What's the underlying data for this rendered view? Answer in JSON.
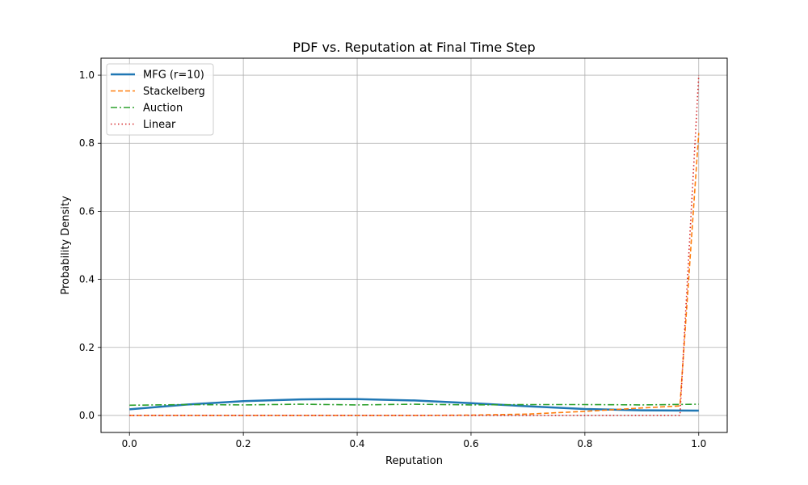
{
  "chart_data": {
    "type": "line",
    "title": "PDF vs. Reputation at Final Time Step",
    "xlabel": "Reputation",
    "ylabel": "Probability Density",
    "xlim": [
      -0.05,
      1.05
    ],
    "ylim": [
      -0.05,
      1.05
    ],
    "xticks": [
      "0.0",
      "0.2",
      "0.4",
      "0.6",
      "0.8",
      "1.0"
    ],
    "yticks": [
      "0.0",
      "0.2",
      "0.4",
      "0.6",
      "0.8",
      "1.0"
    ],
    "grid": true,
    "legend_position": "upper-left",
    "series": [
      {
        "name": "MFG (r=10)",
        "color": "#1f77b4",
        "style": "solid",
        "x": [
          0.0,
          0.1,
          0.2,
          0.3,
          0.35,
          0.4,
          0.5,
          0.6,
          0.7,
          0.8,
          0.9,
          1.0
        ],
        "y": [
          0.018,
          0.032,
          0.042,
          0.047,
          0.048,
          0.048,
          0.044,
          0.036,
          0.027,
          0.019,
          0.015,
          0.014
        ]
      },
      {
        "name": "Stackelberg",
        "color": "#ff7f0e",
        "style": "dashed",
        "x": [
          0.0,
          0.5,
          0.6,
          0.7,
          0.8,
          0.85,
          0.9,
          0.967,
          1.0
        ],
        "y": [
          0.0,
          0.0,
          0.001,
          0.004,
          0.012,
          0.017,
          0.022,
          0.028,
          0.83
        ]
      },
      {
        "name": "Auction",
        "color": "#2ca02c",
        "style": "dashdot",
        "x": [
          0.0,
          0.1,
          0.2,
          0.3,
          0.4,
          0.5,
          0.6,
          0.7,
          0.8,
          0.9,
          1.0
        ],
        "y": [
          0.03,
          0.032,
          0.031,
          0.033,
          0.031,
          0.033,
          0.031,
          0.032,
          0.032,
          0.031,
          0.033
        ]
      },
      {
        "name": "Linear",
        "color": "#d62728",
        "style": "dotted",
        "x": [
          0.0,
          0.967,
          1.0
        ],
        "y": [
          0.0,
          0.0,
          1.0
        ]
      }
    ]
  }
}
